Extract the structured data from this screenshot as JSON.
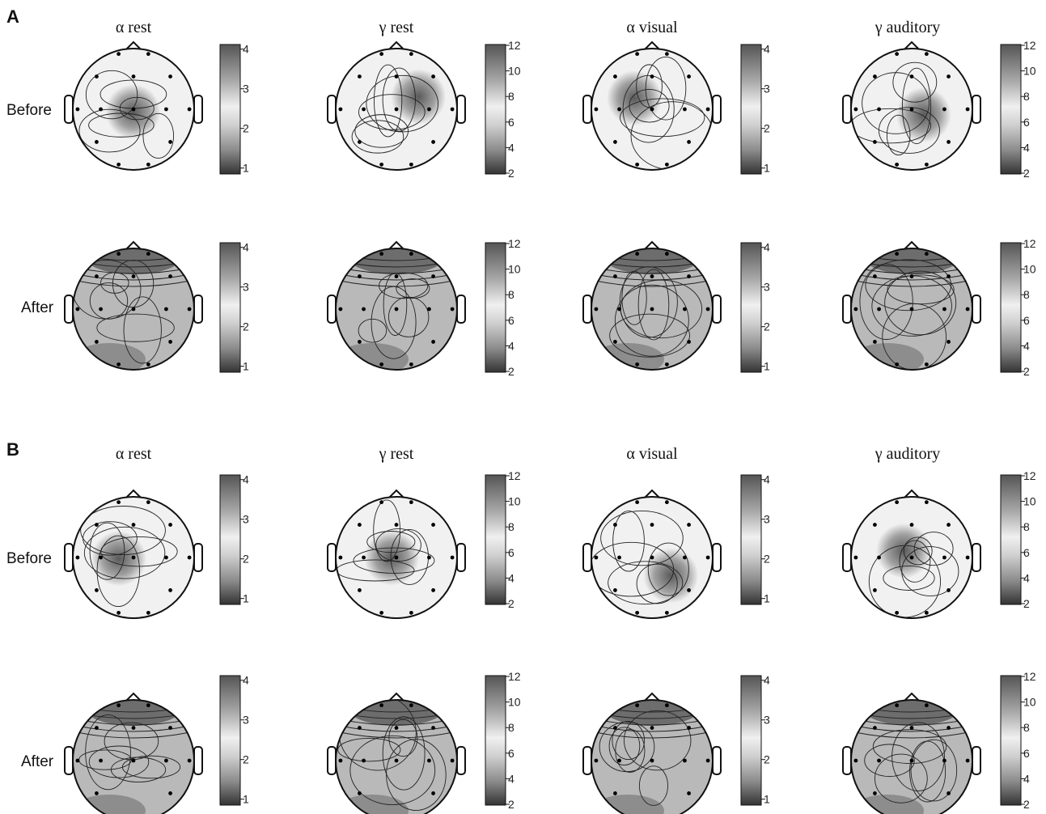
{
  "panels": [
    {
      "letter": "A",
      "column_titles": [
        "α rest",
        "γ rest",
        "α visual",
        "γ auditory"
      ],
      "row_labels": [
        "Before",
        "After"
      ]
    },
    {
      "letter": "B",
      "column_titles": [
        "α rest",
        "γ rest",
        "α visual",
        "γ auditory"
      ],
      "row_labels": [
        "Before",
        "After"
      ]
    }
  ],
  "colorbars": {
    "alpha_ticks": [
      "4",
      "3",
      "2",
      "1"
    ],
    "gamma_ticks": [
      "12",
      "10",
      "8",
      "6",
      "4",
      "2"
    ]
  },
  "colors": {
    "map_light": "#f1f1f1",
    "map_mid": "#b9b9b9",
    "map_dark": "#6f6f6f",
    "outline": "#111111"
  }
}
